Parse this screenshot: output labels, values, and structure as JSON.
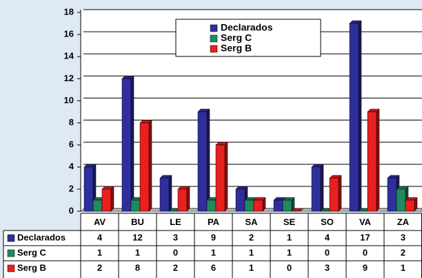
{
  "chart_data": {
    "type": "bar",
    "categories": [
      "AV",
      "BU",
      "LE",
      "PA",
      "SA",
      "SE",
      "SO",
      "VA",
      "ZA"
    ],
    "series": [
      {
        "name": "Declarados",
        "color": "#2f2f9c",
        "values": [
          4,
          12,
          3,
          9,
          2,
          1,
          4,
          17,
          3
        ]
      },
      {
        "name": "Serg C",
        "color": "#1f8a5c",
        "values": [
          1,
          1,
          0,
          1,
          1,
          1,
          0,
          0,
          2
        ]
      },
      {
        "name": "Serg B",
        "color": "#e8201e",
        "values": [
          2,
          8,
          2,
          6,
          1,
          0,
          3,
          9,
          1
        ]
      }
    ],
    "ylim": [
      0,
      18
    ],
    "yticks": [
      0,
      2,
      4,
      6,
      8,
      10,
      12,
      14,
      16,
      18
    ],
    "grid": true,
    "legend": "top"
  }
}
